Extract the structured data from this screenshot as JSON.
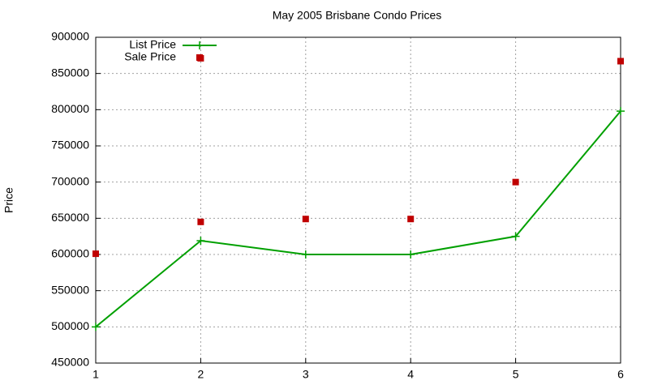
{
  "chart_data": {
    "type": "line",
    "title": "May 2005 Brisbane Condo Prices",
    "y_label": "Price",
    "xlim": [
      1,
      6
    ],
    "xticks": [
      1,
      2,
      3,
      4,
      5,
      6
    ],
    "ylim": [
      450000,
      900000
    ],
    "yticks": [
      450000,
      500000,
      550000,
      600000,
      650000,
      700000,
      750000,
      800000,
      850000,
      900000
    ],
    "grid": true,
    "legend": "top-left",
    "series": [
      {
        "name": "List Price",
        "color": "#00a000",
        "type": "line",
        "x": [
          1,
          2,
          3,
          4,
          5,
          6
        ],
        "values": [
          500000,
          619000,
          600000,
          600000,
          625000,
          798000
        ]
      },
      {
        "name": "Sale Price",
        "color": "#c00000",
        "type": "scatter",
        "x": [
          1,
          2,
          2,
          3,
          4,
          5,
          6
        ],
        "values": [
          601000,
          871000,
          645000,
          649000,
          649000,
          700000,
          867000
        ]
      }
    ]
  }
}
